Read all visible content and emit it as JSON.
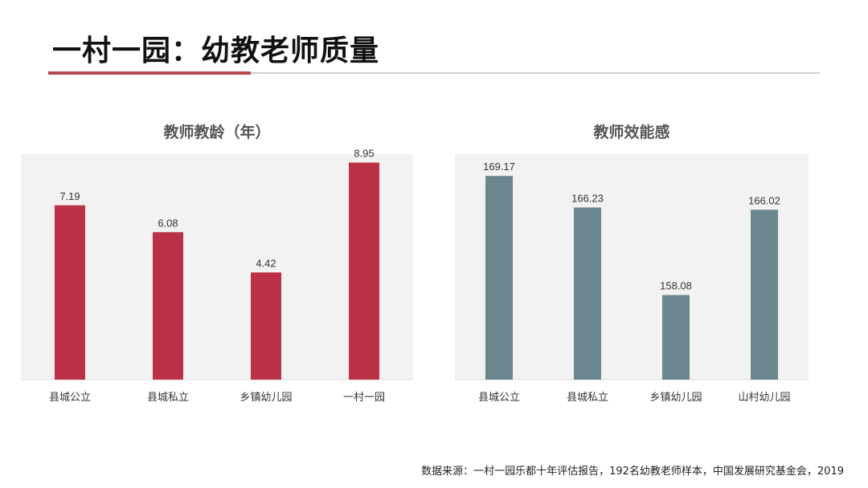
{
  "slide": {
    "title": "一村一园：幼教老师质量",
    "source": "数据来源：一村一园乐都十年评估报告，192名幼教老师样本，中国发展研究基金会，2019"
  },
  "chart_data": [
    {
      "type": "bar",
      "title": "教师教龄（年）",
      "xlabel": "",
      "ylabel": "",
      "categories": [
        "县城公立",
        "县城私立",
        "乡镇幼儿园",
        "一村一园"
      ],
      "values": [
        7.19,
        6.08,
        4.42,
        8.95
      ],
      "value_labels": [
        "7.19",
        "6.08",
        "4.42",
        "8.95"
      ],
      "ylim": [
        0,
        9.3
      ],
      "color": "#bb3145",
      "background": "#f2f2f2",
      "grid": false,
      "legend": "none"
    },
    {
      "type": "bar",
      "title": "教师效能感",
      "xlabel": "",
      "ylabel": "",
      "categories": [
        "县城公立",
        "县城私立",
        "乡镇幼儿园",
        "山村幼儿园"
      ],
      "values": [
        169.17,
        166.23,
        158.08,
        166.02
      ],
      "value_labels": [
        "169.17",
        "166.23",
        "158.08",
        "166.02"
      ],
      "ylim": [
        150.2,
        171.2
      ],
      "color": "#6a868f",
      "background": "#f2f2f2",
      "grid": false,
      "legend": "none"
    }
  ]
}
